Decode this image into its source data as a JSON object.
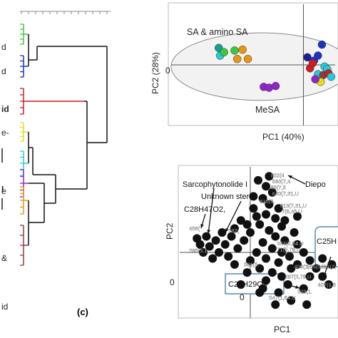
{
  "colors": {
    "green": "#3cc83c",
    "blue": "#1e32c8",
    "red": "#c82020",
    "yellow": "#e6dc1e",
    "cyan": "#28c8dc",
    "purple": "#8c28c8",
    "orange": "#e69614",
    "brown": "#8c3c3c",
    "teal": "#14a08c",
    "navy": "#1e1e96",
    "black": "#111111",
    "frame": "#5a8aa8"
  },
  "dendrogram": {
    "panel_label": "(c)",
    "leaf_fragments": [
      "d",
      "d",
      "id",
      "e-",
      "",
      "e",
      "l",
      "&",
      "id"
    ],
    "clusters": [
      "green",
      "blue",
      "red",
      "yellow",
      "cyan",
      "purple",
      "orange",
      "brown"
    ]
  },
  "chart_data": [
    {
      "type": "scatter",
      "title": "",
      "xlabel": "PC1 (40%)",
      "ylabel": "PC2 (28%)",
      "xlim": [
        -5,
        1.2
      ],
      "ylim": [
        -3.5,
        3.5
      ],
      "y_ticks": [
        "0"
      ],
      "grid": false,
      "annotations": [
        "SA & amino SA",
        "MeSA"
      ],
      "points": [
        {
          "x": -3.2,
          "y": 1.0,
          "c": "teal"
        },
        {
          "x": -3.15,
          "y": 0.55,
          "c": "cyan"
        },
        {
          "x": -3.0,
          "y": 0.75,
          "c": "green"
        },
        {
          "x": -2.6,
          "y": 0.85,
          "c": "green"
        },
        {
          "x": -2.3,
          "y": 0.9,
          "c": "orange"
        },
        {
          "x": -2.5,
          "y": 0.35,
          "c": "orange"
        },
        {
          "x": -2.1,
          "y": 0.35,
          "c": "orange"
        },
        {
          "x": -1.5,
          "y": -1.3,
          "c": "purple"
        },
        {
          "x": -1.3,
          "y": -1.35,
          "c": "purple"
        },
        {
          "x": -1.05,
          "y": -1.25,
          "c": "purple"
        },
        {
          "x": 0.15,
          "y": 0.45,
          "c": "navy"
        },
        {
          "x": 0.4,
          "y": 0.25,
          "c": "blue"
        },
        {
          "x": 0.55,
          "y": 0.55,
          "c": "blue"
        },
        {
          "x": 0.7,
          "y": 1.2,
          "c": "blue"
        },
        {
          "x": 0.25,
          "y": -0.2,
          "c": "red"
        },
        {
          "x": 0.35,
          "y": 0.1,
          "c": "red"
        },
        {
          "x": 0.55,
          "y": -0.55,
          "c": "cyan"
        },
        {
          "x": 0.8,
          "y": -0.1,
          "c": "cyan"
        },
        {
          "x": 0.9,
          "y": -0.25,
          "c": "cyan"
        },
        {
          "x": 0.75,
          "y": -0.6,
          "c": "brown"
        },
        {
          "x": 0.95,
          "y": -0.5,
          "c": "red"
        },
        {
          "x": 0.65,
          "y": -1.0,
          "c": "yellow"
        },
        {
          "x": 0.45,
          "y": -0.85,
          "c": "purple"
        },
        {
          "x": 1.05,
          "y": -0.7,
          "c": "cyan"
        }
      ],
      "confidence_ellipse": {
        "cx": -1.6,
        "cy": -0.1,
        "rx": 3.4,
        "ry": 2.0
      }
    },
    {
      "type": "scatter",
      "title": "",
      "xlabel": "PC1",
      "ylabel": "PC2",
      "xlim": [
        -0.45,
        0.55
      ],
      "ylim": [
        -0.32,
        0.42
      ],
      "x_ticks": [
        "0"
      ],
      "y_ticks": [
        "0"
      ],
      "grid": false,
      "annotations": [
        {
          "text": "Sarcophytonolide I",
          "x": -0.33,
          "y": 0.33
        },
        {
          "text": "Unknown sterol",
          "x": -0.2,
          "y": 0.26
        },
        {
          "text": "Diepo",
          "x": 0.41,
          "y": 0.33
        },
        {
          "text": "C28H47O2,",
          "x": -0.38,
          "y": 0.19
        },
        {
          "text": "C25H",
          "x": 0.46,
          "y": 0.07
        },
        {
          "text": "C21H29O3",
          "x": -0.17,
          "y": -0.18
        }
      ],
      "cluster_points": [
        [
          0.05,
          0.36
        ],
        [
          0.1,
          0.33
        ],
        [
          0.14,
          0.3
        ],
        [
          0.08,
          0.27
        ],
        [
          0.12,
          0.24
        ],
        [
          0.18,
          0.22
        ],
        [
          0.02,
          0.22
        ],
        [
          0.1,
          0.19
        ],
        [
          0.16,
          0.17
        ],
        [
          0.06,
          0.14
        ],
        [
          0.2,
          0.13
        ],
        [
          0.12,
          0.11
        ],
        [
          0.0,
          0.1
        ],
        [
          0.16,
          0.08
        ],
        [
          0.22,
          0.06
        ],
        [
          0.08,
          0.05
        ],
        [
          -0.04,
          0.06
        ],
        [
          0.14,
          0.02
        ],
        [
          0.04,
          0.0
        ],
        [
          0.2,
          0.0
        ],
        [
          -0.08,
          0.02
        ],
        [
          0.1,
          -0.03
        ],
        [
          0.18,
          -0.05
        ],
        [
          0.0,
          -0.04
        ],
        [
          0.25,
          -0.02
        ],
        [
          0.06,
          -0.08
        ],
        [
          0.14,
          -0.1
        ],
        [
          -0.02,
          -0.1
        ],
        [
          0.2,
          -0.12
        ],
        [
          0.1,
          -0.14
        ],
        [
          0.26,
          -0.08
        ],
        [
          -0.12,
          0.08
        ],
        [
          -0.16,
          0.04
        ],
        [
          -0.2,
          0.0
        ],
        [
          -0.14,
          -0.02
        ],
        [
          -0.22,
          0.06
        ],
        [
          -0.26,
          0.03
        ],
        [
          -0.3,
          0.0
        ],
        [
          -0.24,
          -0.03
        ],
        [
          -0.18,
          0.1
        ],
        [
          -0.1,
          0.12
        ],
        [
          -0.06,
          0.16
        ],
        [
          0.04,
          0.18
        ],
        [
          0.22,
          0.16
        ],
        [
          0.28,
          0.1
        ],
        [
          0.3,
          0.04
        ],
        [
          -0.28,
          0.08
        ],
        [
          -0.32,
          0.04
        ],
        [
          0.24,
          -0.16
        ],
        [
          0.18,
          -0.2
        ],
        [
          0.3,
          -0.06
        ],
        [
          0.34,
          0.0
        ],
        [
          0.38,
          -0.04
        ],
        [
          0.42,
          -0.08
        ],
        [
          0.46,
          -0.12
        ],
        [
          0.5,
          -0.16
        ],
        [
          0.46,
          -0.03
        ],
        [
          0.38,
          -0.12
        ],
        [
          0.26,
          -0.24
        ],
        [
          0.16,
          -0.26
        ],
        [
          0.06,
          -0.2
        ],
        [
          -0.06,
          -0.16
        ],
        [
          0.34,
          -0.18
        ],
        [
          0.52,
          -0.06
        ],
        [
          0.02,
          0.28
        ],
        [
          0.12,
          0.38
        ],
        [
          -0.02,
          0.14
        ],
        [
          0.08,
          -0.18
        ],
        [
          0.3,
          0.18
        ],
        [
          -0.1,
          -0.06
        ],
        [
          -0.34,
          0.07
        ],
        [
          0.36,
          -0.26
        ]
      ],
      "point_labels": [
        {
          "text": "802(4",
          "x": 0.13,
          "y": 0.375
        },
        {
          "text": "590(7,4",
          "x": 0.14,
          "y": 0.345
        },
        {
          "text": "65(7,5",
          "x": 0.13,
          "y": 0.315
        },
        {
          "text": "630(7,31,U",
          "x": 0.14,
          "y": 0.285
        },
        {
          "text": "510(6.",
          "x": 0.06,
          "y": 0.245
        },
        {
          "text": "613(7,31,U",
          "x": 0.19,
          "y": 0.225
        },
        {
          "text": "7(6,45,U",
          "x": 0.2,
          "y": 0.195
        },
        {
          "text": "456(",
          "x": -0.39,
          "y": 0.11
        },
        {
          "text": "285(5,1",
          "x": -0.39,
          "y": 0.0
        },
        {
          "text": "182(",
          "x": -0.14,
          "y": 0.1
        },
        {
          "text": "344(5,84,U",
          "x": 0.17,
          "y": 0.035
        },
        {
          "text": "71(5,78,U",
          "x": 0.17,
          "y": 0.005
        },
        {
          "text": "409(1,",
          "x": 0.28,
          "y": -0.08
        },
        {
          "text": "565(0",
          "x": 0.36,
          "y": -0.08
        },
        {
          "text": "651(2,",
          "x": 0.45,
          "y": -0.08
        },
        {
          "text": "287(3,78,U",
          "x": 0.22,
          "y": -0.13
        },
        {
          "text": "407(1,6",
          "x": 0.43,
          "y": -0.17
        },
        {
          "text": "547(1,64,U",
          "x": 0.12,
          "y": -0.235
        },
        {
          "text": "329(1.",
          "x": 0.3,
          "y": -0.205
        },
        {
          "text": "581(5,",
          "x": -0.04,
          "y": -0.07
        }
      ]
    }
  ]
}
